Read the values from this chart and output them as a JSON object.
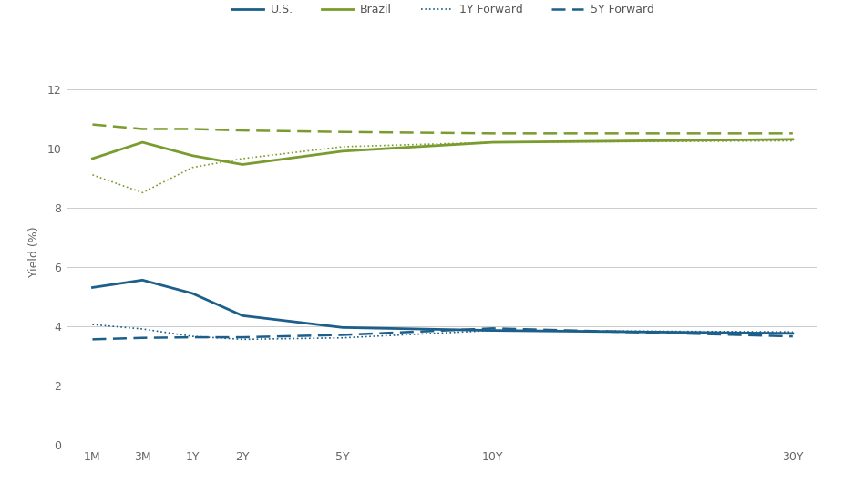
{
  "x_labels": [
    "1M",
    "3M",
    "1Y",
    "2Y",
    "5Y",
    "10Y",
    "30Y"
  ],
  "x_positions": [
    0,
    1,
    2,
    3,
    5,
    8,
    14
  ],
  "us_yield": [
    5.3,
    5.55,
    5.1,
    4.35,
    3.95,
    3.85,
    3.75
  ],
  "brazil_yield": [
    9.65,
    10.2,
    9.75,
    9.45,
    9.9,
    10.2,
    10.3
  ],
  "us_1y_forward": [
    4.05,
    3.9,
    3.65,
    3.55,
    3.6,
    3.85,
    3.8
  ],
  "us_5y_forward": [
    3.55,
    3.6,
    3.62,
    3.62,
    3.7,
    3.92,
    3.65
  ],
  "brazil_1y_forward": [
    9.1,
    8.5,
    9.35,
    9.65,
    10.05,
    10.2,
    10.25
  ],
  "brazil_5y_forward": [
    10.8,
    10.65,
    10.65,
    10.6,
    10.55,
    10.5,
    10.5
  ],
  "us_color": "#1c5f8a",
  "brazil_color": "#7a9c2e",
  "ylabel": "Yield (%)",
  "ylim": [
    0,
    13
  ],
  "yticks": [
    0,
    2,
    4,
    6,
    8,
    10,
    12
  ],
  "background_color": "#ffffff",
  "grid_color": "#cccccc",
  "axis_fontsize": 9,
  "legend_fontsize": 9
}
